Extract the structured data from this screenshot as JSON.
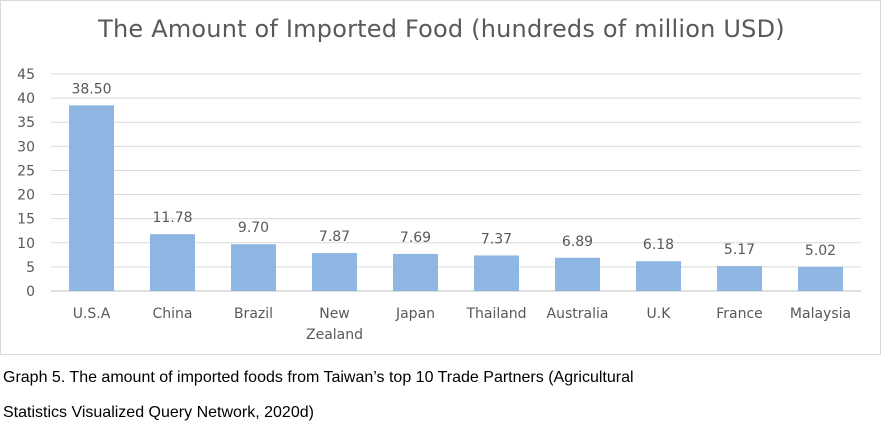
{
  "chart_data": {
    "type": "bar",
    "title": "The Amount of Imported Food (hundreds of million USD)",
    "xlabel": "",
    "ylabel": "",
    "categories": [
      "U.S.A",
      "China",
      "Brazil",
      "New Zealand",
      "Japan",
      "Thailand",
      "Australia",
      "U.K",
      "France",
      "Malaysia"
    ],
    "category_lines": [
      [
        "U.S.A"
      ],
      [
        "China"
      ],
      [
        "Brazil"
      ],
      [
        "New",
        "Zealand"
      ],
      [
        "Japan"
      ],
      [
        "Thailand"
      ],
      [
        "Australia"
      ],
      [
        "U.K"
      ],
      [
        "France"
      ],
      [
        "Malaysia"
      ]
    ],
    "values": [
      38.5,
      11.78,
      9.7,
      7.87,
      7.69,
      7.37,
      6.89,
      6.18,
      5.17,
      5.02
    ],
    "value_labels": [
      "38.50",
      "11.78",
      "9.70",
      "7.87",
      "7.69",
      "7.37",
      "6.89",
      "6.18",
      "5.17",
      "5.02"
    ],
    "y_ticks": [
      0,
      5,
      10,
      15,
      20,
      25,
      30,
      35,
      40,
      45
    ],
    "ylim": [
      0,
      45
    ],
    "grid": true,
    "legend": "none",
    "bar_color": "#8db6e2",
    "grid_color": "#d9d9d9",
    "label_color": "#595959"
  },
  "caption": {
    "line1": "Graph 5. The amount of imported foods from Taiwan’s top 10 Trade Partners (Agricultural",
    "line2": "Statistics Visualized Query Network, 2020d)"
  }
}
